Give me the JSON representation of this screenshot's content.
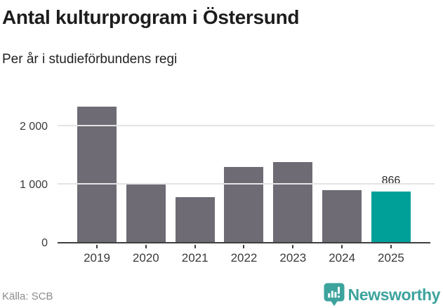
{
  "header": {
    "title": "Antal kulturprogram i Östersund",
    "subtitle": "Per år i studieförbundens regi"
  },
  "chart_data": {
    "type": "bar",
    "title": "Antal kulturprogram i Östersund",
    "subtitle": "Per år i studieförbundens regi",
    "categories": [
      "2019",
      "2020",
      "2021",
      "2022",
      "2023",
      "2024",
      "2025"
    ],
    "values": [
      2330,
      1010,
      770,
      1290,
      1380,
      900,
      866
    ],
    "data_labels": {
      "6": "866"
    },
    "highlight_index": 6,
    "xlabel": "",
    "ylabel": "",
    "ylim": [
      0,
      2500
    ],
    "yticks": [
      0,
      1000,
      2000
    ],
    "ytick_labels": [
      "0",
      "1 000",
      "2 000"
    ],
    "grid": true,
    "legend": "none",
    "bar_color": "#6e6b74",
    "highlight_color": "#00a099"
  },
  "footer": {
    "source": "Källa: SCB",
    "brand": "Newsworthy"
  },
  "colors": {
    "accent_teal": "#00a099",
    "bar_gray": "#6e6b74",
    "gridline": "#e4e4e4",
    "axis": "#3f3f3f",
    "title_text": "#1d1d1d",
    "muted_text": "#8c8c8c",
    "logo_teal": "#3da39d"
  }
}
